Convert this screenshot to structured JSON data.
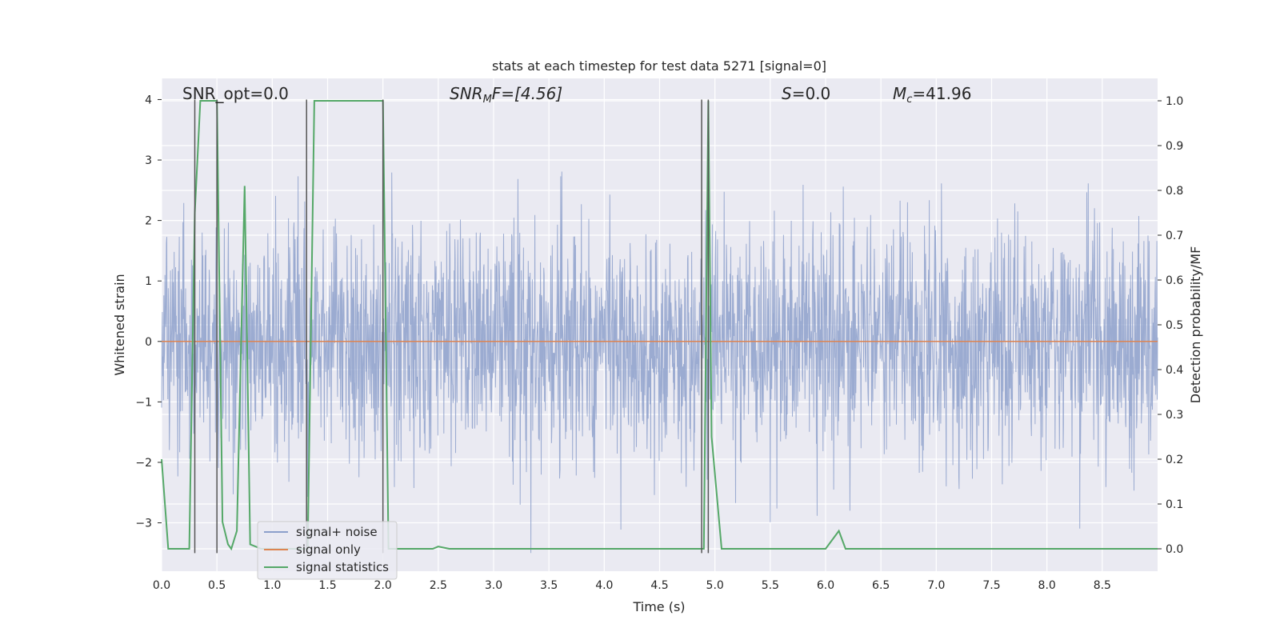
{
  "chart_data": {
    "type": "line",
    "title": "stats at each timestep for test data 5271 [signal=0]",
    "xlabel": "Time (s)",
    "ylabel": "Whitened strain",
    "y2label": "Detection probability/MF",
    "xlim": [
      0,
      9.0
    ],
    "ylim": [
      -3.8,
      4.35
    ],
    "y2lim": [
      -0.05,
      1.05
    ],
    "xticks": [
      0.0,
      0.5,
      1.0,
      1.5,
      2.0,
      2.5,
      3.0,
      3.5,
      4.0,
      4.5,
      5.0,
      5.5,
      6.0,
      6.5,
      7.0,
      7.5,
      8.0,
      8.5
    ],
    "xtick_labels": [
      "0.0",
      "0.5",
      "1.0",
      "1.5",
      "2.0",
      "2.5",
      "3.0",
      "3.5",
      "4.0",
      "4.5",
      "5.0",
      "5.5",
      "6.0",
      "6.5",
      "7.0",
      "7.5",
      "8.0",
      "8.5"
    ],
    "yticks": [
      -3,
      -2,
      -1,
      0,
      1,
      2,
      3,
      4
    ],
    "ytick_labels": [
      "−3",
      "−2",
      "−1",
      "0",
      "1",
      "2",
      "3",
      "4"
    ],
    "y2ticks": [
      0.0,
      0.1,
      0.2,
      0.3,
      0.4,
      0.5,
      0.6,
      0.7,
      0.8,
      0.9,
      1.0
    ],
    "y2tick_labels": [
      "0.0",
      "0.1",
      "0.2",
      "0.3",
      "0.4",
      "0.5",
      "0.6",
      "0.7",
      "0.8",
      "0.9",
      "1.0"
    ],
    "grid": true,
    "legend_position": "lower-left",
    "annotations": {
      "snr_opt": "SNR_opt=0.0",
      "snr_mf_prefix": "SNR",
      "snr_mf_sub": "M",
      "snr_mf_suffix": "F=[4.56]",
      "s_var": "S",
      "s_val": "=0.0",
      "mc_var": "M",
      "mc_sub": "c",
      "mc_val": "=41.96"
    },
    "series": [
      {
        "name": "signal+ noise",
        "color": "#8da0cb",
        "axis": "left",
        "kind": "noise",
        "sigma": 0.95,
        "points_per_second": 300
      },
      {
        "name": "signal only",
        "color": "#dd8452",
        "axis": "left",
        "x": [
          0,
          9.0
        ],
        "y": [
          0,
          0
        ]
      },
      {
        "name": "signal statistics",
        "color": "#55a868",
        "axis": "right",
        "x": [
          0.0,
          0.06,
          0.15,
          0.25,
          0.3,
          0.35,
          0.38,
          0.42,
          0.5,
          0.55,
          0.6,
          0.63,
          0.68,
          0.75,
          0.8,
          0.9,
          1.0,
          1.1,
          1.2,
          1.28,
          1.32,
          1.38,
          1.42,
          2.0,
          2.05,
          2.15,
          2.3,
          2.45,
          2.5,
          2.6,
          4.9,
          4.94,
          4.97,
          5.06,
          6.0,
          6.12,
          6.18,
          9.0
        ],
        "y": [
          0.2,
          0.0,
          0.0,
          0.0,
          0.75,
          1.0,
          1.0,
          1.0,
          1.0,
          0.06,
          0.01,
          0.0,
          0.04,
          0.81,
          0.01,
          0.0,
          0.0,
          0.0,
          0.0,
          0.0,
          0.0,
          1.0,
          1.0,
          1.0,
          0.0,
          0.0,
          0.0,
          0.0,
          0.005,
          0.0,
          0.0,
          1.0,
          0.25,
          0.0,
          0.0,
          0.04,
          0.0,
          0.0
        ]
      }
    ],
    "vlines": {
      "color": "#555555",
      "x": [
        0.3,
        0.5,
        1.31,
        2.0,
        4.88,
        4.94
      ],
      "y_range": [
        -3.5,
        4.0
      ]
    }
  }
}
